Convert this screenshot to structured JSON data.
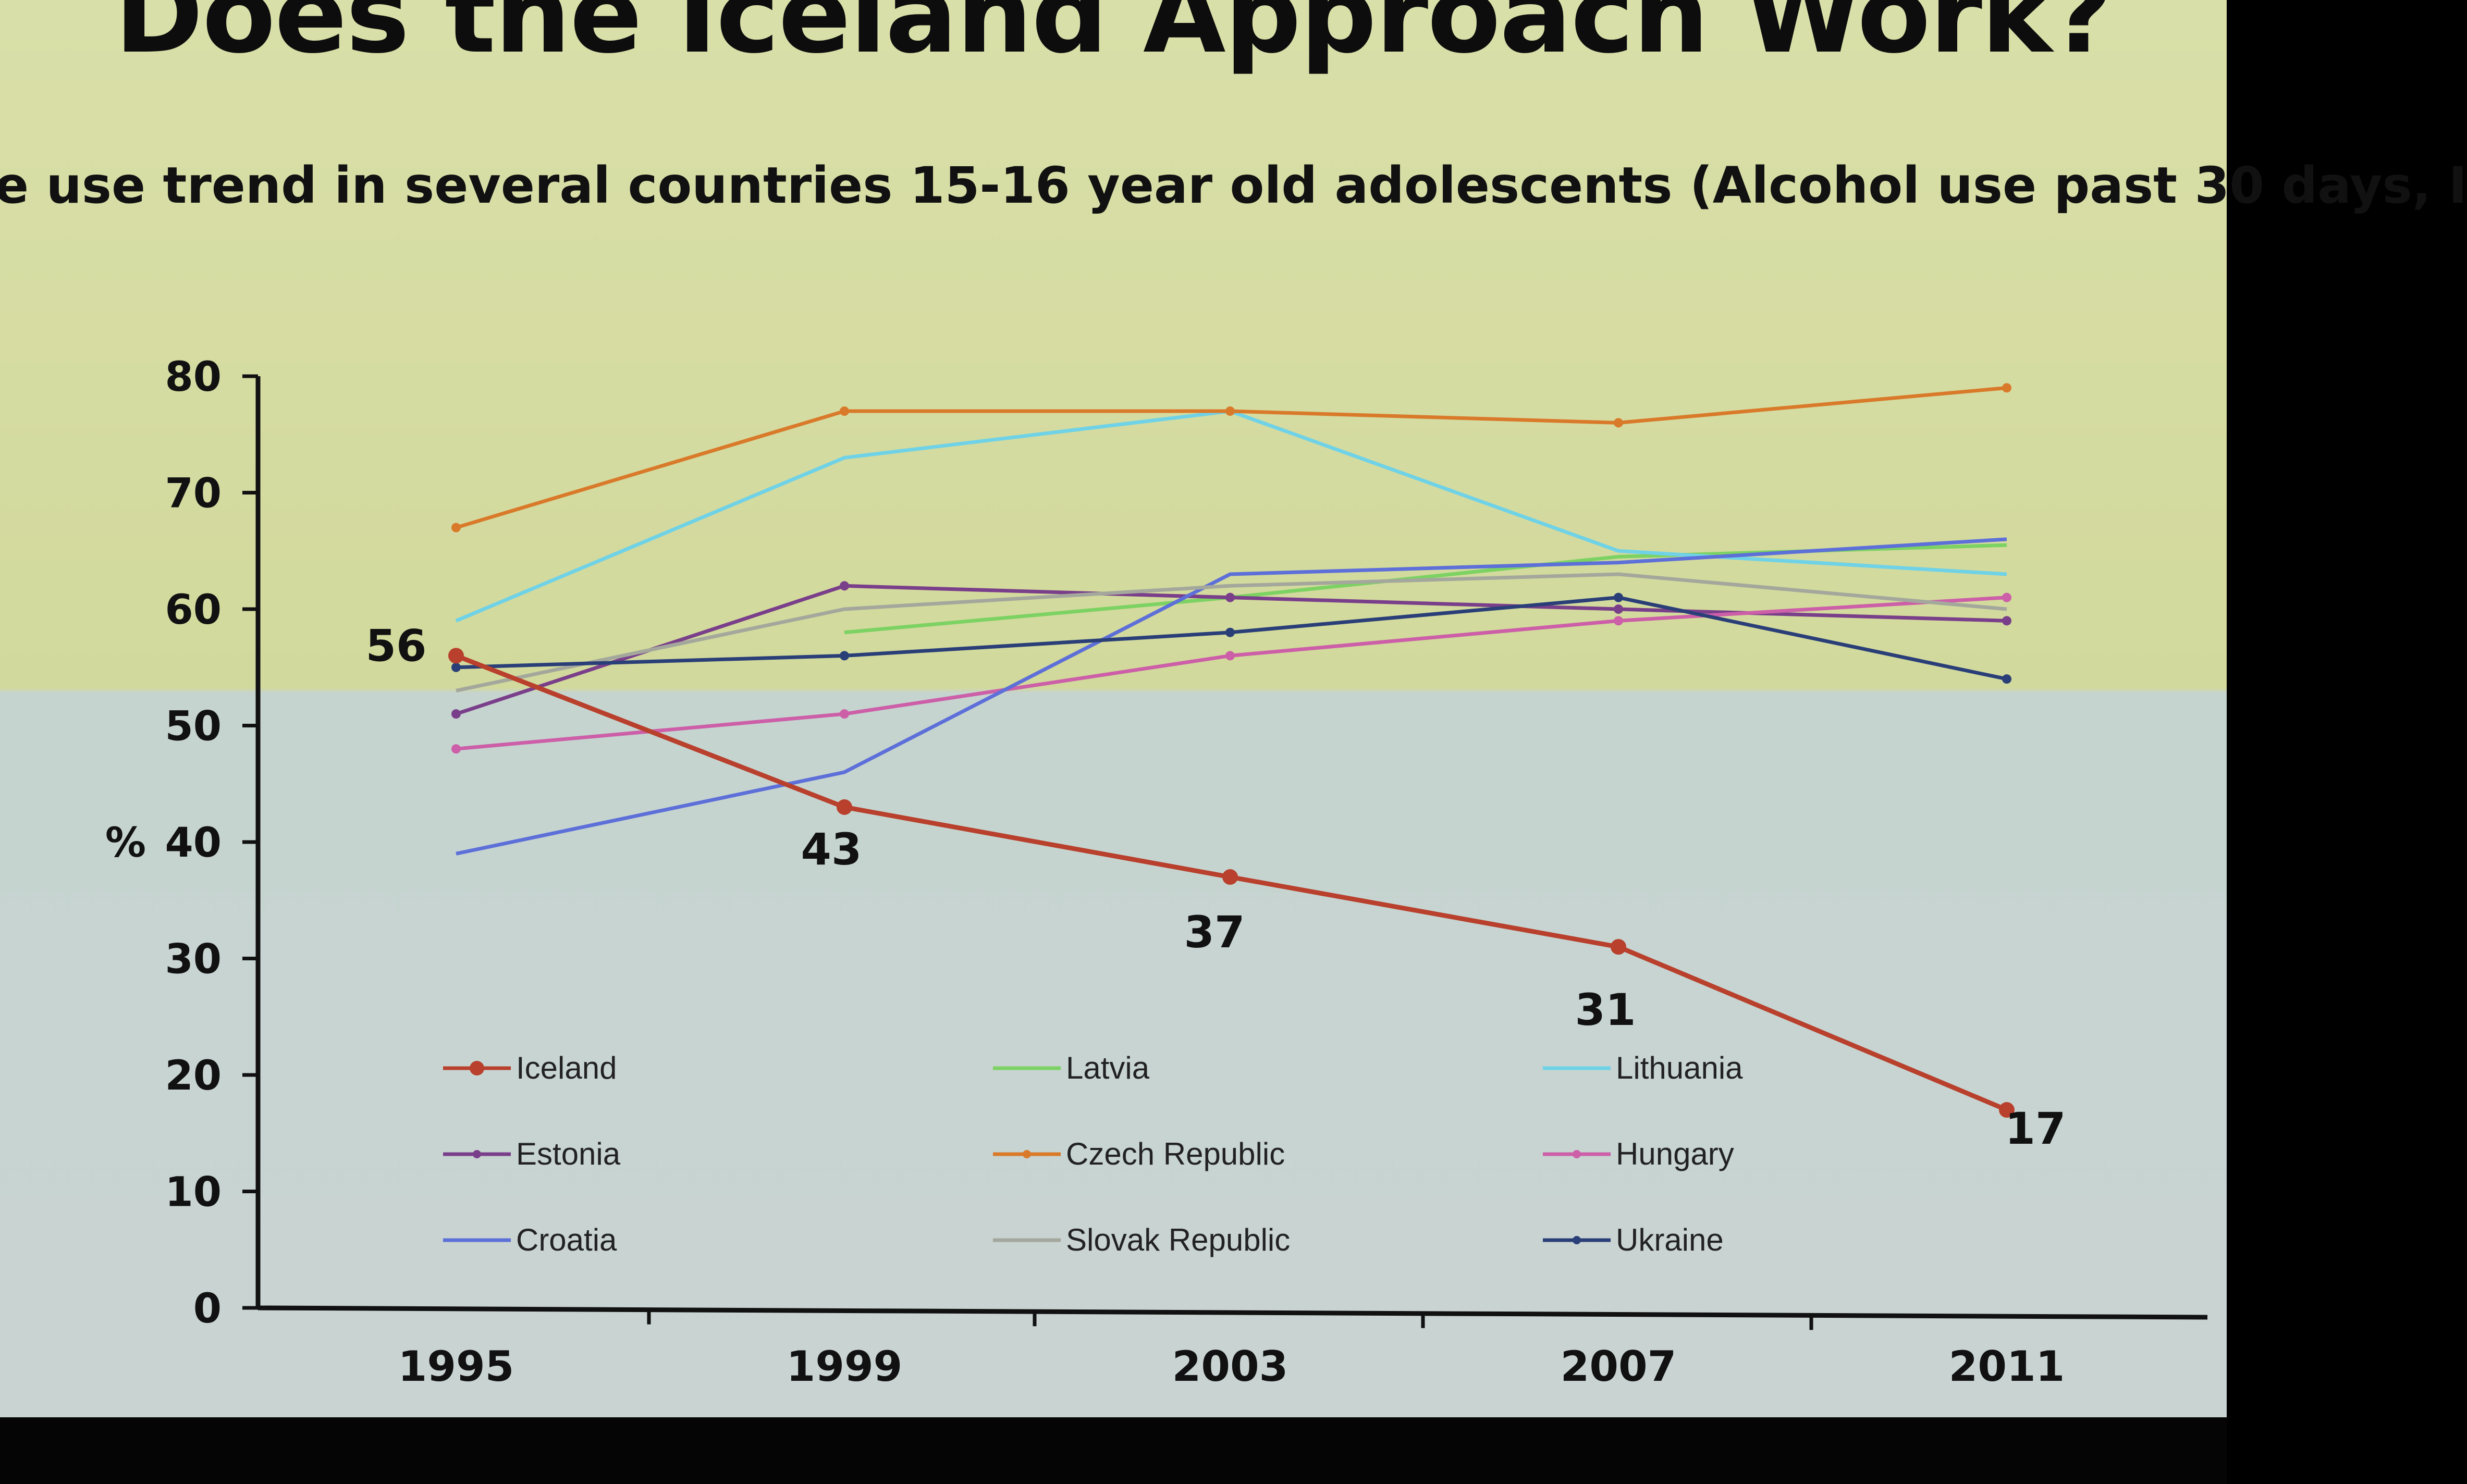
{
  "slide": {
    "title": "Does the Iceland Approach Work?",
    "subtitle": "e use trend in several countries 15-16 year old adolescents (Alcohol use past 30 days, I"
  },
  "chart_data": {
    "type": "line",
    "ylabel": "%",
    "ylim": [
      0,
      80
    ],
    "yticks": [
      0,
      10,
      20,
      30,
      40,
      50,
      60,
      70,
      80
    ],
    "x": [
      "1995",
      "1999",
      "2003",
      "2007",
      "2011"
    ],
    "grid": false,
    "legend": "bottom-left, 3 columns",
    "series": [
      {
        "name": "Iceland",
        "color": "#b8402c",
        "marker": "dot",
        "values": [
          56,
          43,
          37,
          31,
          17
        ],
        "labels": [
          "56",
          "43",
          "37",
          "31",
          "17"
        ]
      },
      {
        "name": "Latvia",
        "color": "#7cd262",
        "marker": "none",
        "values": [
          null,
          58,
          61,
          64.5,
          65.5
        ]
      },
      {
        "name": "Lithuania",
        "color": "#6fd2e6",
        "marker": "none",
        "values": [
          59,
          73,
          77,
          65,
          63
        ]
      },
      {
        "name": "Estonia",
        "color": "#7a3f8a",
        "marker": "dot",
        "values": [
          51,
          62,
          61,
          60,
          59
        ]
      },
      {
        "name": "Czech Republic",
        "color": "#d97a2a",
        "marker": "dot",
        "values": [
          67,
          77,
          77,
          76,
          79
        ]
      },
      {
        "name": "Hungary",
        "color": "#cc5fa8",
        "marker": "dot",
        "values": [
          48,
          51,
          56,
          59,
          61
        ]
      },
      {
        "name": "Croatia",
        "color": "#5d6fd8",
        "marker": "none",
        "values": [
          39,
          46,
          63,
          64,
          66
        ]
      },
      {
        "name": "Slovak Republic",
        "color": "#a4a89c",
        "marker": "none",
        "values": [
          53,
          60,
          62,
          63,
          60
        ]
      },
      {
        "name": "Ukraine",
        "color": "#2a3f78",
        "marker": "dot",
        "values": [
          55,
          56,
          58,
          61,
          54
        ]
      }
    ]
  }
}
